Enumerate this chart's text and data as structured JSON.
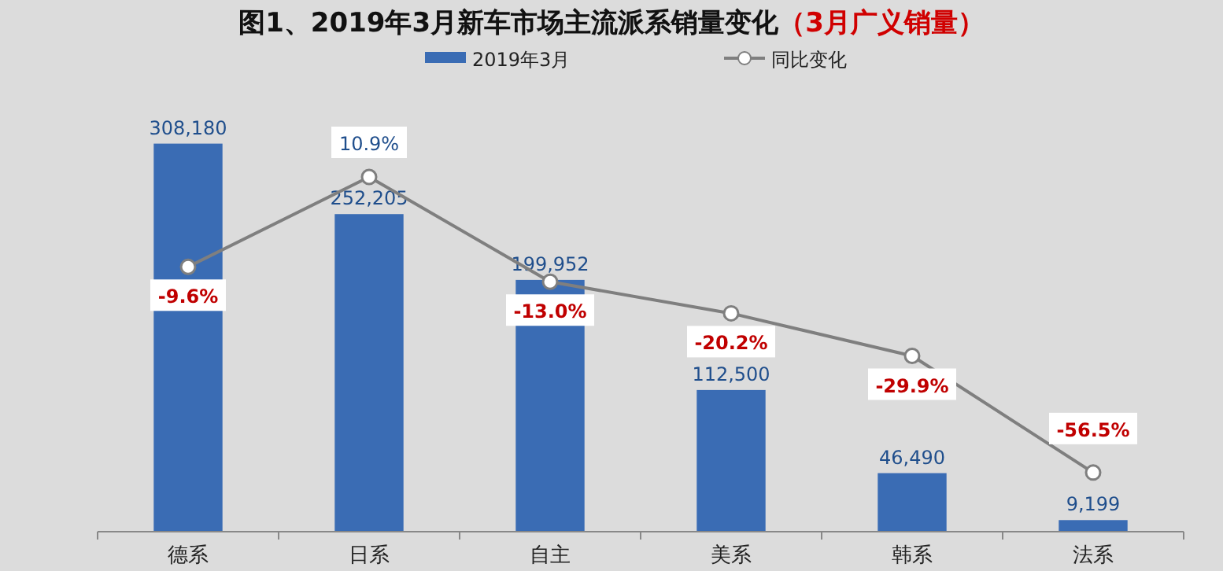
{
  "chart_data": {
    "type": "bar",
    "title": "图1、2019年3月新车市场主流派系销量变化",
    "subtitle": "（3月广义销量）",
    "categories": [
      "德系",
      "日系",
      "自主",
      "美系",
      "韩系",
      "法系"
    ],
    "series": [
      {
        "name": "2019年3月",
        "color": "#3a6cb4",
        "values": [
          308180,
          252205,
          199952,
          112500,
          46490,
          9199
        ],
        "value_labels": [
          "308,180",
          "252,205",
          "199,952",
          "112,500",
          "46,490",
          "9,199"
        ]
      },
      {
        "name": "同比变化",
        "type": "line",
        "axis": "y2",
        "color": "#7f7f7f",
        "values": [
          -9.6,
          10.9,
          -13.0,
          -20.2,
          -29.9,
          -56.5
        ],
        "value_labels": [
          "-9.6%",
          "10.9%",
          "-13.0%",
          "-20.2%",
          "-29.9%",
          "-56.5%"
        ]
      }
    ],
    "data_labels": true,
    "legend": "top",
    "marker": "circle"
  }
}
